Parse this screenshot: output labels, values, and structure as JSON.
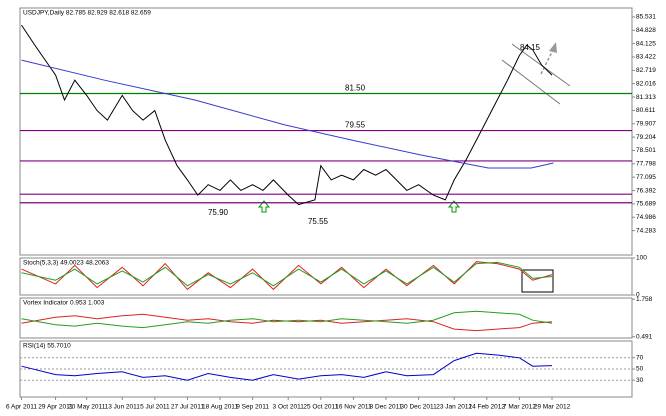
{
  "chart_data": [
    {
      "type": "line",
      "title": "USDJPY,Daily 82.785 82.929 82.618 82.659",
      "x": [
        "2011-04-06",
        "2011-04-15",
        "2011-04-29",
        "2011-05-05",
        "2011-05-12",
        "2011-05-20",
        "2011-05-27",
        "2011-06-03",
        "2011-06-13",
        "2011-06-20",
        "2011-06-27",
        "2011-07-05",
        "2011-07-12",
        "2011-07-20",
        "2011-07-27",
        "2011-08-03",
        "2011-08-10",
        "2011-08-18",
        "2011-08-25",
        "2011-09-01",
        "2011-09-09",
        "2011-09-16",
        "2011-09-23",
        "2011-10-03",
        "2011-10-10",
        "2011-10-21",
        "2011-10-25",
        "2011-11-01",
        "2011-11-08",
        "2011-11-16",
        "2011-11-23",
        "2011-12-01",
        "2011-12-08",
        "2011-12-15",
        "2011-12-22",
        "2011-12-30",
        "2012-01-09",
        "2012-01-17",
        "2012-01-23",
        "2012-01-31",
        "2012-02-07",
        "2012-02-14",
        "2012-02-21",
        "2012-02-28",
        "2012-03-07",
        "2012-03-12",
        "2012-03-16",
        "2012-03-22",
        "2012-03-29"
      ],
      "series": [
        {
          "color": "#000000",
          "values": [
            85.1,
            84.05,
            82.47,
            81.16,
            82.2,
            81.4,
            80.6,
            80.1,
            81.4,
            80.6,
            80.1,
            80.6,
            79.05,
            77.7,
            76.95,
            76.15,
            76.7,
            76.4,
            76.95,
            76.4,
            76.7,
            76.4,
            76.95,
            76.15,
            75.65,
            75.9,
            77.7,
            76.95,
            77.2,
            76.95,
            77.5,
            77.2,
            77.5,
            76.95,
            76.4,
            76.7,
            76.15,
            75.9,
            76.95,
            78.0,
            79.05,
            80.1,
            81.16,
            82.2,
            83.5,
            84.05,
            83.8,
            83.0,
            82.47
          ]
        },
        {
          "color": "#3a3ad0",
          "x": [
            "2011-04-06",
            "2011-06-01",
            "2011-08-01",
            "2011-10-01",
            "2011-11-15",
            "2012-01-01",
            "2012-02-15",
            "2012-03-15",
            "2012-03-30"
          ],
          "values": [
            83.26,
            82.2,
            81.16,
            79.84,
            79.05,
            78.26,
            77.58,
            77.58,
            77.84
          ]
        }
      ],
      "levels": [
        {
          "value": 81.5,
          "label": "81.50",
          "color": "#008000"
        },
        {
          "value": 79.55,
          "label": "79.55",
          "color": "#800080"
        },
        {
          "value": 77.95,
          "color": "#800080"
        },
        {
          "value": 76.2,
          "color": "#800080"
        },
        {
          "value": 75.75,
          "color": "#800080"
        }
      ],
      "annotations": [
        "75.90",
        "75.55",
        "84.15"
      ],
      "xlim": [
        "2011-04-05",
        "2012-05-22"
      ],
      "ylim": [
        73.0,
        86.0
      ],
      "yticks": [
        85.531,
        84.828,
        84.125,
        83.422,
        82.719,
        82.016,
        81.313,
        80.611,
        79.907,
        79.204,
        78.501,
        77.798,
        77.095,
        76.392,
        75.689,
        74.986,
        74.283
      ]
    },
    {
      "type": "line",
      "title": "Stoch(5,3,3) 49.0023 48.2063",
      "x": [
        "2011-04-06",
        "2011-04-29",
        "2011-05-12",
        "2011-05-27",
        "2011-06-13",
        "2011-06-27",
        "2011-07-12",
        "2011-07-27",
        "2011-08-10",
        "2011-08-25",
        "2011-09-09",
        "2011-09-23",
        "2011-10-10",
        "2011-10-25",
        "2011-11-08",
        "2011-11-23",
        "2011-12-08",
        "2011-12-22",
        "2012-01-09",
        "2012-01-23",
        "2012-02-07",
        "2012-02-21",
        "2012-03-07",
        "2012-03-16",
        "2012-03-29"
      ],
      "series": [
        {
          "color": "#e02020",
          "values": [
            70,
            30,
            80,
            20,
            75,
            25,
            85,
            15,
            60,
            20,
            70,
            15,
            80,
            30,
            75,
            20,
            70,
            25,
            80,
            30,
            90,
            85,
            70,
            40,
            55
          ]
        },
        {
          "color": "#20a020",
          "values": [
            60,
            40,
            70,
            30,
            65,
            35,
            75,
            25,
            55,
            30,
            60,
            25,
            70,
            35,
            70,
            30,
            65,
            30,
            75,
            35,
            85,
            88,
            75,
            45,
            50
          ]
        }
      ],
      "xlim": [
        "2011-04-05",
        "2012-05-22"
      ],
      "ylim": [
        0,
        100
      ],
      "yticks": [
        0,
        100
      ]
    },
    {
      "type": "line",
      "title": "Vortex Indicator 0.953 1.003",
      "x": [
        "2011-04-06",
        "2011-04-29",
        "2011-05-12",
        "2011-05-27",
        "2011-06-13",
        "2011-06-27",
        "2011-07-12",
        "2011-07-27",
        "2011-08-10",
        "2011-08-25",
        "2011-09-09",
        "2011-09-23",
        "2011-10-10",
        "2011-10-25",
        "2011-11-08",
        "2011-11-23",
        "2011-12-08",
        "2011-12-22",
        "2012-01-09",
        "2012-01-23",
        "2012-02-07",
        "2012-02-21",
        "2012-03-07",
        "2012-03-16",
        "2012-03-29"
      ],
      "series": [
        {
          "color": "#e02020",
          "values": [
            0.95,
            1.15,
            1.2,
            1.1,
            1.2,
            1.25,
            1.15,
            1.05,
            1.1,
            1.0,
            0.95,
            1.05,
            1.0,
            1.05,
            0.95,
            1.0,
            1.05,
            1.1,
            1.0,
            0.75,
            0.7,
            0.75,
            0.8,
            0.95,
            1.0
          ]
        },
        {
          "color": "#20a020",
          "values": [
            1.1,
            0.9,
            0.85,
            0.95,
            0.85,
            0.8,
            0.9,
            1.0,
            0.95,
            1.05,
            1.1,
            1.0,
            1.05,
            1.0,
            1.1,
            1.05,
            1.0,
            0.95,
            1.05,
            1.3,
            1.35,
            1.3,
            1.25,
            1.05,
            0.95
          ]
        }
      ],
      "xlim": [
        "2011-04-05",
        "2012-05-22"
      ],
      "ylim": [
        0.45,
        1.8
      ],
      "yticks": [
        0.491,
        1.758
      ]
    },
    {
      "type": "line",
      "title": "RSI(14) 55.7010",
      "x": [
        "2011-04-06",
        "2011-04-29",
        "2011-05-12",
        "2011-05-27",
        "2011-06-13",
        "2011-06-27",
        "2011-07-12",
        "2011-07-27",
        "2011-08-10",
        "2011-08-25",
        "2011-09-09",
        "2011-09-23",
        "2011-10-10",
        "2011-10-25",
        "2011-11-08",
        "2011-11-23",
        "2011-12-08",
        "2011-12-22",
        "2012-01-09",
        "2012-01-23",
        "2012-02-07",
        "2012-02-21",
        "2012-03-07",
        "2012-03-16",
        "2012-03-29"
      ],
      "series": [
        {
          "color": "#0000cc",
          "values": [
            55,
            40,
            38,
            42,
            45,
            35,
            38,
            30,
            42,
            35,
            30,
            40,
            32,
            38,
            40,
            35,
            45,
            38,
            40,
            65,
            78,
            75,
            70,
            55,
            56
          ]
        }
      ],
      "xlim": [
        "2011-04-05",
        "2012-05-22"
      ],
      "ylim": [
        0,
        100
      ],
      "yticks": [
        30,
        50,
        70
      ],
      "grid": true,
      "xticks": [
        {
          "value": "2011-04-06",
          "label": "6 Apr 2011"
        },
        {
          "value": "2011-04-29",
          "label": "29 Apr 2011"
        },
        {
          "value": "2011-05-20",
          "label": "20 May 2011"
        },
        {
          "value": "2011-06-13",
          "label": "13 Jun 2011"
        },
        {
          "value": "2011-07-05",
          "label": "5 Jul 2011"
        },
        {
          "value": "2011-07-27",
          "label": "27 Jul 2011"
        },
        {
          "value": "2011-08-18",
          "label": "18 Aug 2011"
        },
        {
          "value": "2011-09-09",
          "label": "9 Sep 2011"
        },
        {
          "value": "2011-10-03",
          "label": "3 Oct 2011"
        },
        {
          "value": "2011-10-25",
          "label": "25 Oct 2011"
        },
        {
          "value": "2011-11-16",
          "label": "16 Nov 2011"
        },
        {
          "value": "2011-12-08",
          "label": "8 Dec 2011"
        },
        {
          "value": "2011-12-30",
          "label": "30 Dec 2011"
        },
        {
          "value": "2012-01-23",
          "label": "23 Jan 2012"
        },
        {
          "value": "2012-02-14",
          "label": "14 Feb 2012"
        },
        {
          "value": "2012-03-07",
          "label": "7 Mar 2012"
        },
        {
          "value": "2012-03-29",
          "label": "29 Mar 2012"
        }
      ]
    }
  ]
}
